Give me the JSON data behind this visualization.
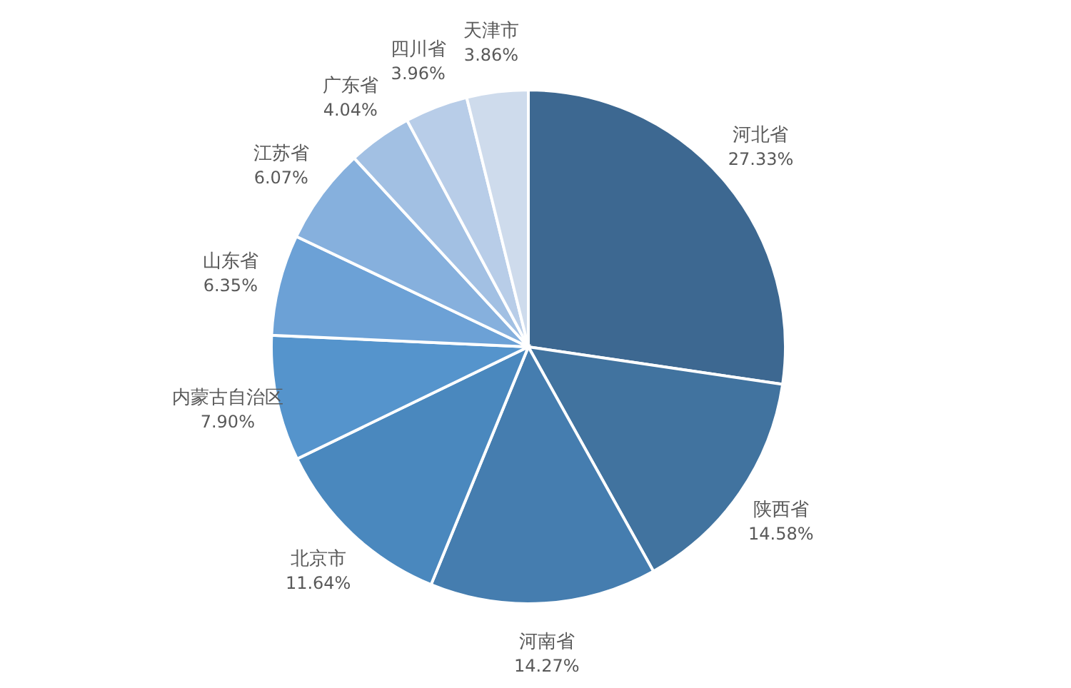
{
  "chart_data": {
    "type": "pie",
    "categories": [
      "河北省",
      "陕西省",
      "河南省",
      "北京市",
      "内蒙古自治区",
      "山东省",
      "江苏省",
      "广东省",
      "四川省",
      "天津市"
    ],
    "values": [
      27.33,
      14.58,
      14.27,
      11.64,
      7.9,
      6.35,
      6.07,
      4.04,
      3.96,
      3.86
    ],
    "value_labels": [
      "27.33%",
      "14.58%",
      "14.27%",
      "11.64%",
      "7.90%",
      "6.35%",
      "6.07%",
      "4.04%",
      "3.96%",
      "3.86%"
    ],
    "colors": [
      "#3d6891",
      "#41739f",
      "#457daf",
      "#4a88be",
      "#5594cc",
      "#6ca1d6",
      "#86b0dd",
      "#a2c0e3",
      "#b8cde8",
      "#cedbec"
    ],
    "legend": false
  }
}
